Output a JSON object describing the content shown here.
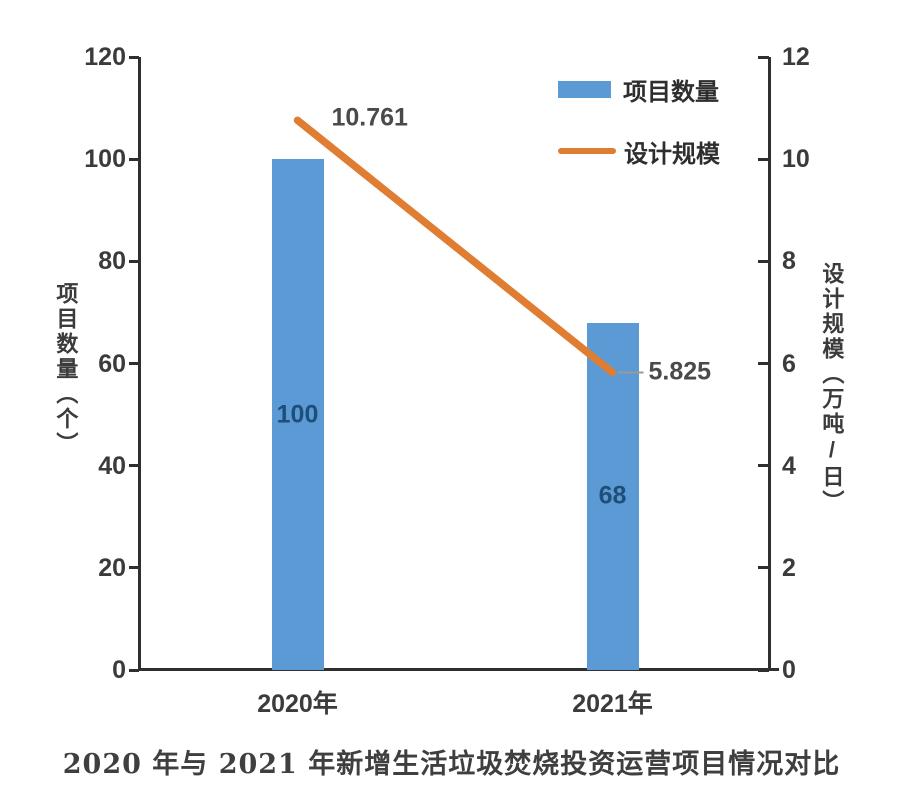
{
  "caption": "2020 年与 2021 年新增生活垃圾焚烧投资运营项目情况对比",
  "colors": {
    "bar": "#5B9AD5",
    "line": "#DF7D33",
    "bar_value_label": "#1F4E79",
    "axis": "#2f2f2f",
    "tick_label": "#3b3b3b",
    "point_label": "#4a4a4a",
    "leader_line": "#999999"
  },
  "chart_data": {
    "type": "combo",
    "categories": [
      "2020年",
      "2021年"
    ],
    "series": [
      {
        "name": "项目数量",
        "type": "bar",
        "axis": "left",
        "values": [
          100,
          68
        ],
        "data_labels": [
          "100",
          "68"
        ],
        "color": "#5B9AD5"
      },
      {
        "name": "设计规模",
        "type": "line",
        "axis": "right",
        "values": [
          10.761,
          5.825
        ],
        "data_labels": [
          "10.761",
          "5.825"
        ],
        "color": "#DF7D33"
      }
    ],
    "left_axis": {
      "title": "项目数量（个）",
      "min": 0,
      "max": 120,
      "ticks": [
        0,
        20,
        40,
        60,
        80,
        100,
        120
      ]
    },
    "right_axis": {
      "title": "设计规模（万吨/日）",
      "min": 0,
      "max": 12,
      "ticks": [
        0,
        2,
        4,
        6,
        8,
        10,
        12
      ]
    },
    "legend_position": "top-right",
    "grid": false,
    "title": "2020 年与 2021 年新增生活垃圾焚烧投资运营项目情况对比"
  }
}
